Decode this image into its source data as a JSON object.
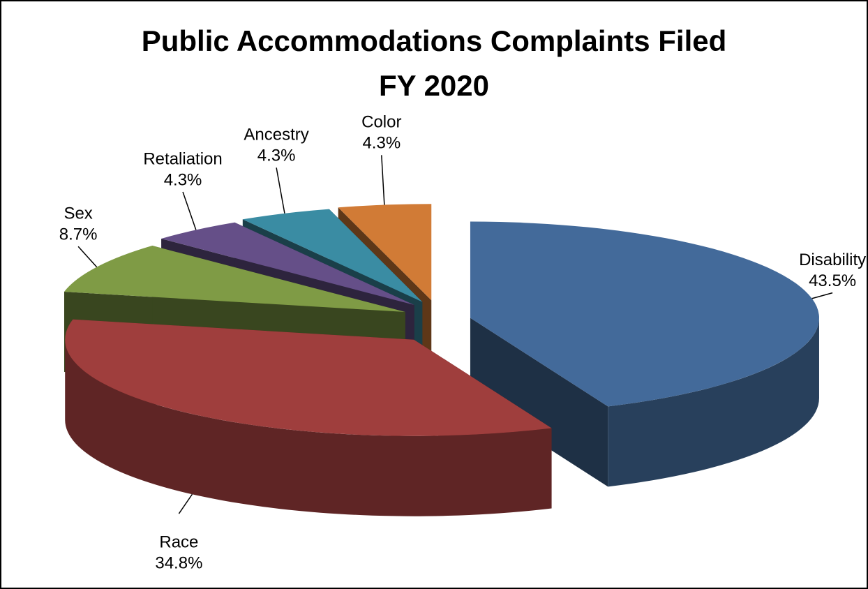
{
  "chart_data": {
    "type": "pie3d",
    "title": "Public Accommodations Complaints Filed",
    "subtitle": "FY 2020",
    "categories": [
      "Disability",
      "Race",
      "Sex",
      "Retaliation",
      "Ancestry",
      "Color"
    ],
    "values": [
      43.5,
      34.8,
      8.7,
      4.3,
      4.3,
      4.3
    ],
    "value_labels": [
      "43.5%",
      "34.8%",
      "8.7%",
      "4.3%",
      "4.3%",
      "4.3%"
    ],
    "colors": [
      "#436a9a",
      "#9f3e3d",
      "#7f9b45",
      "#654f88",
      "#3a8ca3",
      "#d17b36"
    ]
  }
}
